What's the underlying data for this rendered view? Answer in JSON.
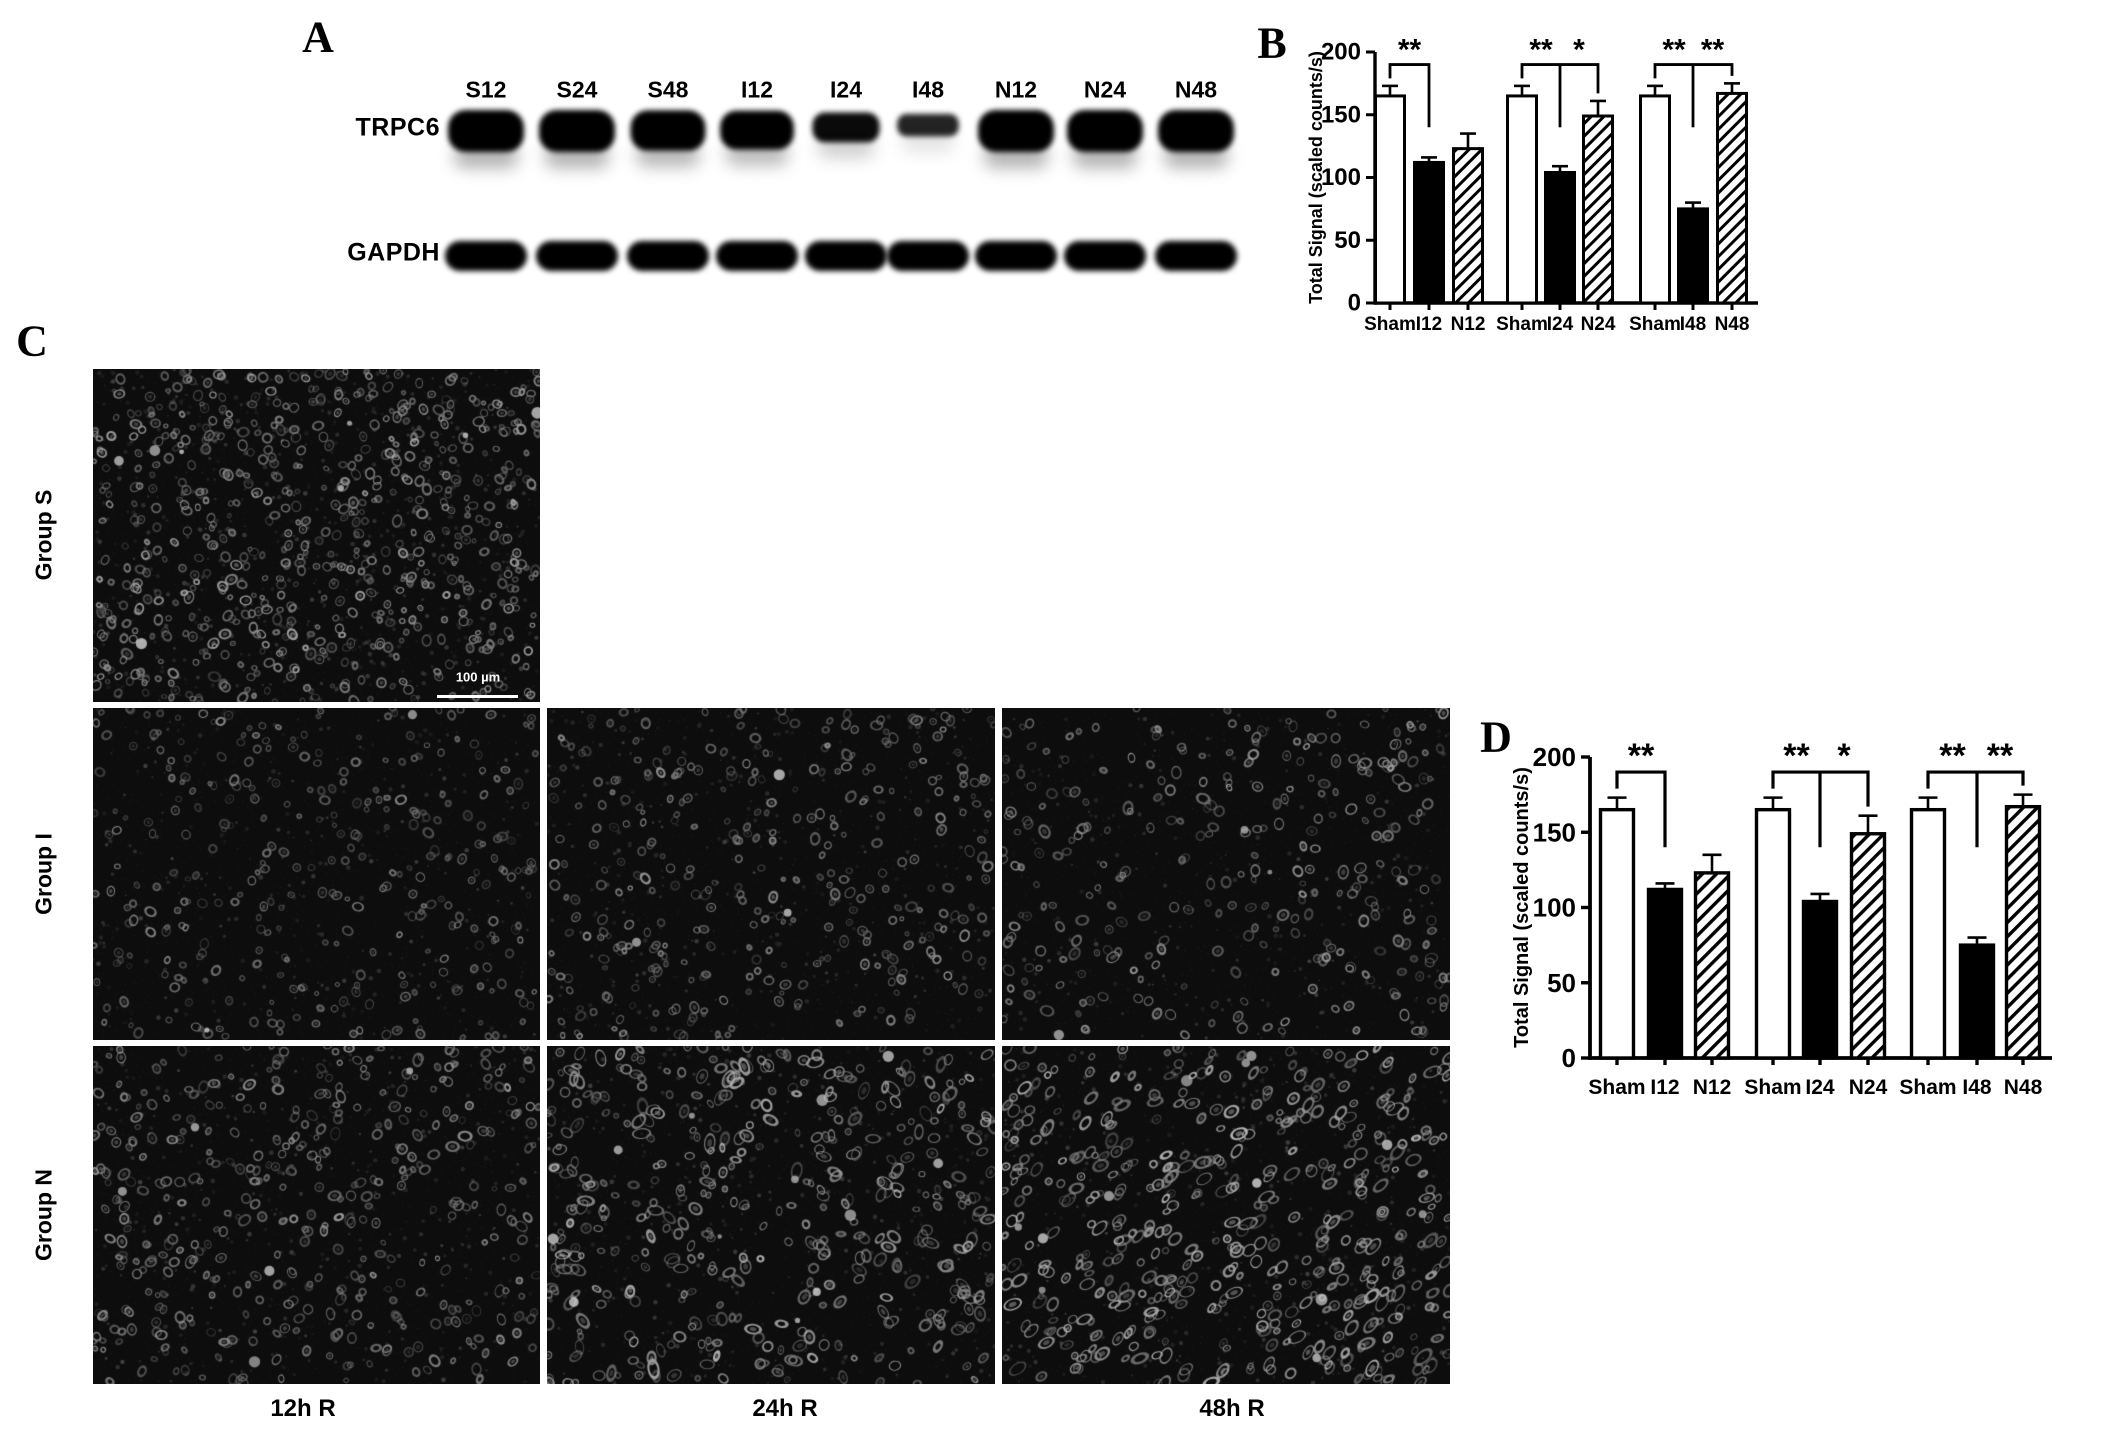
{
  "figure": {
    "letters": {
      "a": "A",
      "b": "B",
      "c": "C",
      "d": "D"
    }
  },
  "panel_a": {
    "lane_labels": [
      "S12",
      "S24",
      "S48",
      "I12",
      "I24",
      "I48",
      "N12",
      "N24",
      "N48"
    ],
    "bands": [
      {
        "name": "TRPC6",
        "intensities": [
          1,
          1,
          0.95,
          0.9,
          0.6,
          0.35,
          1,
          1,
          1
        ]
      },
      {
        "name": "GAPDH",
        "intensities": [
          1,
          1,
          1,
          1,
          1,
          1,
          1,
          1,
          1
        ]
      }
    ]
  },
  "panel_c": {
    "row_labels": [
      "Group S",
      "Group I",
      "Group N"
    ],
    "col_labels": [
      "12h R",
      "24h R",
      "48h R"
    ],
    "scale_bar_label": "100 µm",
    "images": [
      {
        "id": "group-s-12h",
        "row": 0,
        "col": 0,
        "cells": 680,
        "r_min": 1.8,
        "r_max": 4.5,
        "gray_lo": 110,
        "gray_hi": 185,
        "elong": 0.35,
        "blobs": 8,
        "seed": 11
      },
      {
        "id": "group-i-12h",
        "row": 1,
        "col": 0,
        "cells": 330,
        "r_min": 1.8,
        "r_max": 4.2,
        "gray_lo": 95,
        "gray_hi": 150,
        "elong": 0.3,
        "blobs": 2,
        "seed": 22
      },
      {
        "id": "group-i-24h",
        "row": 1,
        "col": 1,
        "cells": 360,
        "r_min": 1.8,
        "r_max": 4.4,
        "gray_lo": 100,
        "gray_hi": 160,
        "elong": 0.35,
        "blobs": 3,
        "seed": 33
      },
      {
        "id": "group-i-48h",
        "row": 1,
        "col": 2,
        "cells": 300,
        "r_min": 2.2,
        "r_max": 4.8,
        "gray_lo": 110,
        "gray_hi": 175,
        "elong": 0.4,
        "blobs": 3,
        "seed": 44
      },
      {
        "id": "group-n-12h",
        "row": 2,
        "col": 0,
        "cells": 430,
        "r_min": 2.0,
        "r_max": 4.6,
        "gray_lo": 105,
        "gray_hi": 165,
        "elong": 0.45,
        "blobs": 5,
        "seed": 55
      },
      {
        "id": "group-n-24h",
        "row": 2,
        "col": 1,
        "cells": 440,
        "r_min": 2.2,
        "r_max": 5.2,
        "gray_lo": 120,
        "gray_hi": 195,
        "elong": 0.8,
        "blobs": 12,
        "seed": 66
      },
      {
        "id": "group-n-48h",
        "row": 2,
        "col": 2,
        "cells": 490,
        "r_min": 2.2,
        "r_max": 5.2,
        "gray_lo": 130,
        "gray_hi": 200,
        "elong": 0.9,
        "orient": -0.7,
        "blobs": 12,
        "seed": 77
      }
    ]
  },
  "chart_data": [
    {
      "panel": "B",
      "type": "bar",
      "title": "",
      "ylabel": "Total Signal (scaled counts/s)",
      "ylim": [
        0,
        200
      ],
      "yticks": [
        0,
        50,
        100,
        150,
        200
      ],
      "categories": [
        "Sham",
        "I12",
        "N12",
        "Sham",
        "I24",
        "N24",
        "Sham",
        "I48",
        "N48"
      ],
      "values": [
        165,
        112,
        123,
        165,
        104,
        149,
        165,
        75,
        167
      ],
      "errors": [
        8,
        4,
        12,
        8,
        5,
        12,
        8,
        5,
        8
      ],
      "bar_styles": [
        "open",
        "solid",
        "hatched",
        "open",
        "solid",
        "hatched",
        "open",
        "solid",
        "hatched"
      ],
      "significance": [
        {
          "segments": [
            {
              "from": 0,
              "to": 1,
              "label": "**"
            }
          ]
        },
        {
          "segments": [
            {
              "from": 3,
              "to": 4,
              "label": "**"
            },
            {
              "from": 4,
              "to": 5,
              "label": "*"
            }
          ]
        },
        {
          "segments": [
            {
              "from": 6,
              "to": 7,
              "label": "**"
            },
            {
              "from": 7,
              "to": 8,
              "label": "**"
            }
          ]
        }
      ]
    },
    {
      "panel": "D",
      "type": "bar",
      "title": "",
      "ylabel": "Total Signal (scaled counts/s)",
      "ylim": [
        0,
        200
      ],
      "yticks": [
        0,
        50,
        100,
        150,
        200
      ],
      "categories": [
        "Sham",
        "I12",
        "N12",
        "Sham",
        "I24",
        "N24",
        "Sham",
        "I48",
        "N48"
      ],
      "values": [
        165,
        112,
        123,
        165,
        104,
        149,
        165,
        75,
        167
      ],
      "errors": [
        8,
        4,
        12,
        8,
        5,
        12,
        8,
        5,
        8
      ],
      "bar_styles": [
        "open",
        "solid",
        "hatched",
        "open",
        "solid",
        "hatched",
        "open",
        "solid",
        "hatched"
      ],
      "significance": [
        {
          "segments": [
            {
              "from": 0,
              "to": 1,
              "label": "**"
            }
          ]
        },
        {
          "segments": [
            {
              "from": 3,
              "to": 4,
              "label": "**"
            },
            {
              "from": 4,
              "to": 5,
              "label": "*"
            }
          ]
        },
        {
          "segments": [
            {
              "from": 6,
              "to": 7,
              "label": "**"
            },
            {
              "from": 7,
              "to": 8,
              "label": "**"
            }
          ]
        }
      ]
    }
  ]
}
